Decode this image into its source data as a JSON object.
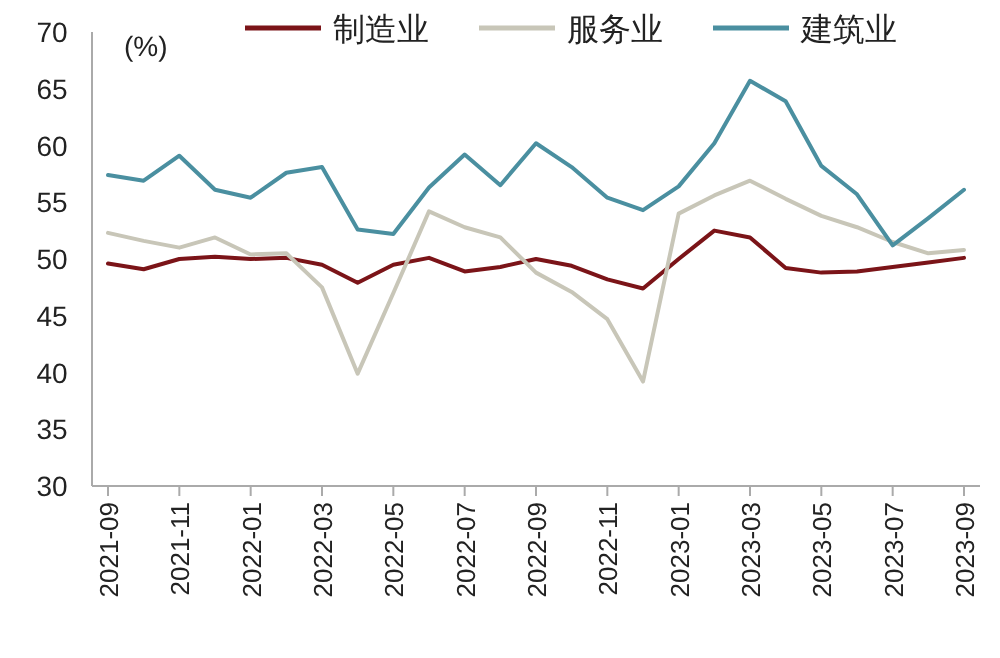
{
  "chart_data": {
    "type": "line",
    "annotations": [
      "(%)"
    ],
    "categories": [
      "2021-09",
      null,
      "2021-11",
      null,
      "2022-01",
      null,
      "2022-03",
      null,
      "2022-05",
      null,
      "2022-07",
      null,
      "2022-09",
      null,
      "2022-11",
      null,
      "2023-01",
      null,
      "2023-03",
      null,
      "2023-05",
      null,
      "2023-07",
      null,
      "2023-09"
    ],
    "series": [
      {
        "name": "制造业",
        "color": "#7b1418",
        "values": [
          49.6,
          49.1,
          50.0,
          50.2,
          50.0,
          50.1,
          49.5,
          47.9,
          49.5,
          50.1,
          48.9,
          49.3,
          50.0,
          49.4,
          48.2,
          47.4,
          50.0,
          52.5,
          51.9,
          49.2,
          48.8,
          48.9,
          49.3,
          49.7,
          50.1
        ]
      },
      {
        "name": "服务业",
        "color": "#c8c6b8",
        "values": [
          52.3,
          51.6,
          51.0,
          51.9,
          50.4,
          50.5,
          47.5,
          39.9,
          47.0,
          54.2,
          52.8,
          51.9,
          48.8,
          47.1,
          44.7,
          39.2,
          54.0,
          55.6,
          56.9,
          55.3,
          53.8,
          52.8,
          51.5,
          50.5,
          50.8
        ]
      },
      {
        "name": "建筑业",
        "color": "#4a8fa0",
        "values": [
          57.4,
          56.9,
          59.1,
          56.1,
          55.4,
          57.6,
          58.1,
          52.6,
          52.2,
          56.3,
          59.2,
          56.5,
          60.2,
          58.1,
          55.4,
          54.3,
          56.4,
          60.2,
          65.7,
          63.9,
          58.2,
          55.7,
          51.2,
          53.6,
          56.1
        ]
      }
    ],
    "ylim": [
      30,
      70
    ],
    "yticks": [
      30,
      35,
      40,
      45,
      50,
      55,
      60,
      65,
      70
    ],
    "grid": false,
    "legend": "top"
  }
}
